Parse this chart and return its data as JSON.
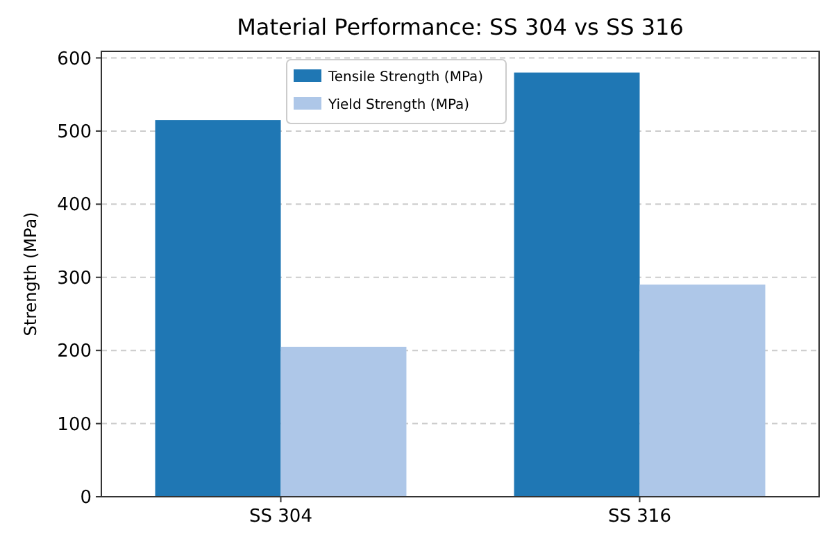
{
  "chart_data": {
    "type": "bar",
    "title": "Material Performance: SS 304 vs SS 316",
    "ylabel": "Strength (MPa)",
    "categories": [
      "SS 304",
      "SS 316"
    ],
    "series": [
      {
        "name": "Tensile Strength (MPa)",
        "color": "#1f77b4",
        "values": [
          515,
          580
        ]
      },
      {
        "name": "Yield Strength (MPa)",
        "color": "#aec7e8",
        "values": [
          205,
          290
        ]
      }
    ],
    "ylim": [
      0,
      609
    ],
    "yticks": [
      0,
      100,
      200,
      300,
      400,
      500,
      600
    ],
    "grid": "y",
    "legend": "top"
  }
}
